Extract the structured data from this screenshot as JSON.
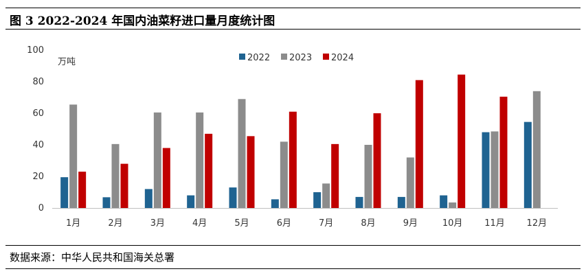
{
  "title": "图 3 2022-2024 年国内油菜籽进口量月度统计图",
  "source": "数据来源：中华人民共和国海关总署",
  "colors": {
    "s2022": "#1f6391",
    "s2023": "#8c8c8c",
    "s2024": "#c00000"
  },
  "chart_data": {
    "type": "bar",
    "title": "",
    "xlabel": "",
    "ylabel": "万吨",
    "ylim": [
      0,
      100
    ],
    "yticks": [
      0,
      20,
      40,
      60,
      80,
      100
    ],
    "grid": false,
    "legend": "top",
    "categories": [
      "1月",
      "2月",
      "3月",
      "4月",
      "5月",
      "6月",
      "7月",
      "8月",
      "9月",
      "10月",
      "11月",
      "12月"
    ],
    "series": [
      {
        "name": "2022",
        "values": [
          19.5,
          6.8,
          12,
          8,
          13,
          5.5,
          10,
          7,
          7,
          8,
          48,
          54.5
        ]
      },
      {
        "name": "2023",
        "values": [
          65.5,
          40.5,
          60.5,
          60.5,
          69,
          42,
          15.5,
          40,
          32,
          3.5,
          48.5,
          74
        ]
      },
      {
        "name": "2024",
        "values": [
          23,
          28,
          38,
          47,
          45.5,
          61,
          40.5,
          60,
          81,
          84.5,
          70.5,
          null
        ]
      }
    ]
  }
}
